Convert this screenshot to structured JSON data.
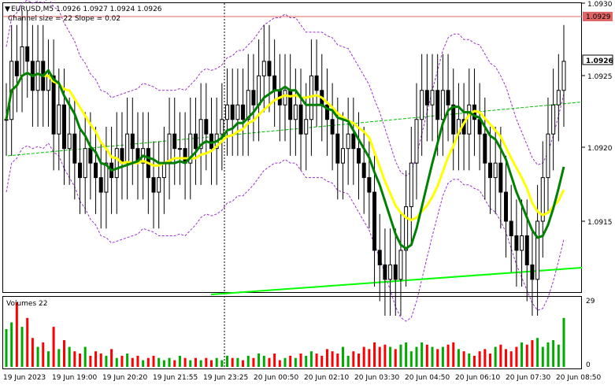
{
  "header": {
    "symbol_info": "EURUSD,M5  1.0926 1.0927 1.0924 1.0926",
    "indicator_info": "Channel size = 22 Slope = 0.02"
  },
  "volume_panel": {
    "title": "Volumes 22",
    "max_label": "29",
    "min_label": "0"
  },
  "price_axis": {
    "ticks": [
      "1.0930",
      "1.0925",
      "1.0920",
      "1.0915"
    ],
    "current_price_label": "1.0926",
    "level_label": "1.0929",
    "level_color": "#e06666"
  },
  "time_axis": {
    "labels": [
      "19 Jun 2023",
      "19 Jun 19:00",
      "19 Jun 20:20",
      "19 Jun 21:55",
      "19 Jun 23:25",
      "20 Jun 00:50",
      "20 Jun 02:10",
      "20 Jun 03:30",
      "20 Jun 04:50",
      "20 Jun 06:10",
      "20 Jun 07:30",
      "20 Jun 08:50"
    ]
  },
  "colors": {
    "fast_ma": "#ffff00",
    "slow_ma": "#008000",
    "channel": "#9932cc",
    "mid_line": "#00c000",
    "support_line": "#00ff00",
    "volume_up": "#00aa00",
    "volume_down": "#ff0000"
  },
  "chart_data": {
    "type": "candlestick",
    "symbol": "EURUSD",
    "timeframe": "M5",
    "ylim": [
      1.0907,
      1.0931
    ],
    "close": [
      1.0922,
      1.0926,
      1.0925,
      1.0927,
      1.0926,
      1.0924,
      1.0926,
      1.0924,
      1.0925,
      1.0921,
      1.0923,
      1.092,
      1.0921,
      1.0919,
      1.0918,
      1.092,
      1.0919,
      1.0918,
      1.0917,
      1.0919,
      1.0918,
      1.092,
      1.0919,
      1.0921,
      1.092,
      1.0919,
      1.092,
      1.0918,
      1.0917,
      1.0918,
      1.0919,
      1.0921,
      1.092,
      1.092,
      1.0919,
      1.0921,
      1.092,
      1.0922,
      1.0921,
      1.092,
      1.0921,
      1.0922,
      1.0923,
      1.0922,
      1.0923,
      1.0922,
      1.0924,
      1.0923,
      1.0925,
      1.0926,
      1.0925,
      1.0924,
      1.0923,
      1.0924,
      1.0922,
      1.0923,
      1.0921,
      1.0922,
      1.0925,
      1.0924,
      1.0923,
      1.0922,
      1.0921,
      1.0919,
      1.092,
      1.0921,
      1.092,
      1.0919,
      1.0918,
      1.0917,
      1.0913,
      1.0912,
      1.0911,
      1.0912,
      1.0911,
      1.0913,
      1.0916,
      1.0919,
      1.0922,
      1.0924,
      1.0923,
      1.0924,
      1.0922,
      1.0924,
      1.0923,
      1.0921,
      1.0922,
      1.0921,
      1.0923,
      1.0922,
      1.0921,
      1.0919,
      1.0918,
      1.0919,
      1.0917,
      1.0915,
      1.0914,
      1.0913,
      1.0914,
      1.0912,
      1.0911,
      1.0915,
      1.0918,
      1.0921,
      1.0923,
      1.0924,
      1.0926
    ],
    "fast_ma_label": "",
    "slow_ma_label": "",
    "volume": [
      17,
      20,
      29,
      18,
      22,
      13,
      9,
      11,
      7,
      18,
      8,
      12,
      9,
      7,
      6,
      9,
      5,
      7,
      6,
      5,
      8,
      4,
      5,
      6,
      4,
      5,
      3,
      4,
      5,
      4,
      3,
      4,
      3,
      5,
      4,
      3,
      4,
      3,
      4,
      3,
      4,
      3,
      5,
      4,
      4,
      3,
      5,
      4,
      6,
      5,
      4,
      6,
      3,
      4,
      5,
      4,
      6,
      5,
      7,
      6,
      5,
      8,
      7,
      6,
      9,
      5,
      7,
      6,
      9,
      8,
      11,
      9,
      10,
      9,
      8,
      10,
      11,
      7,
      9,
      11,
      10,
      9,
      8,
      9,
      10,
      11,
      8,
      7,
      6,
      5,
      7,
      8,
      6,
      9,
      10,
      8,
      7,
      9,
      11,
      10,
      12,
      13,
      9,
      11,
      12,
      10,
      22
    ]
  }
}
